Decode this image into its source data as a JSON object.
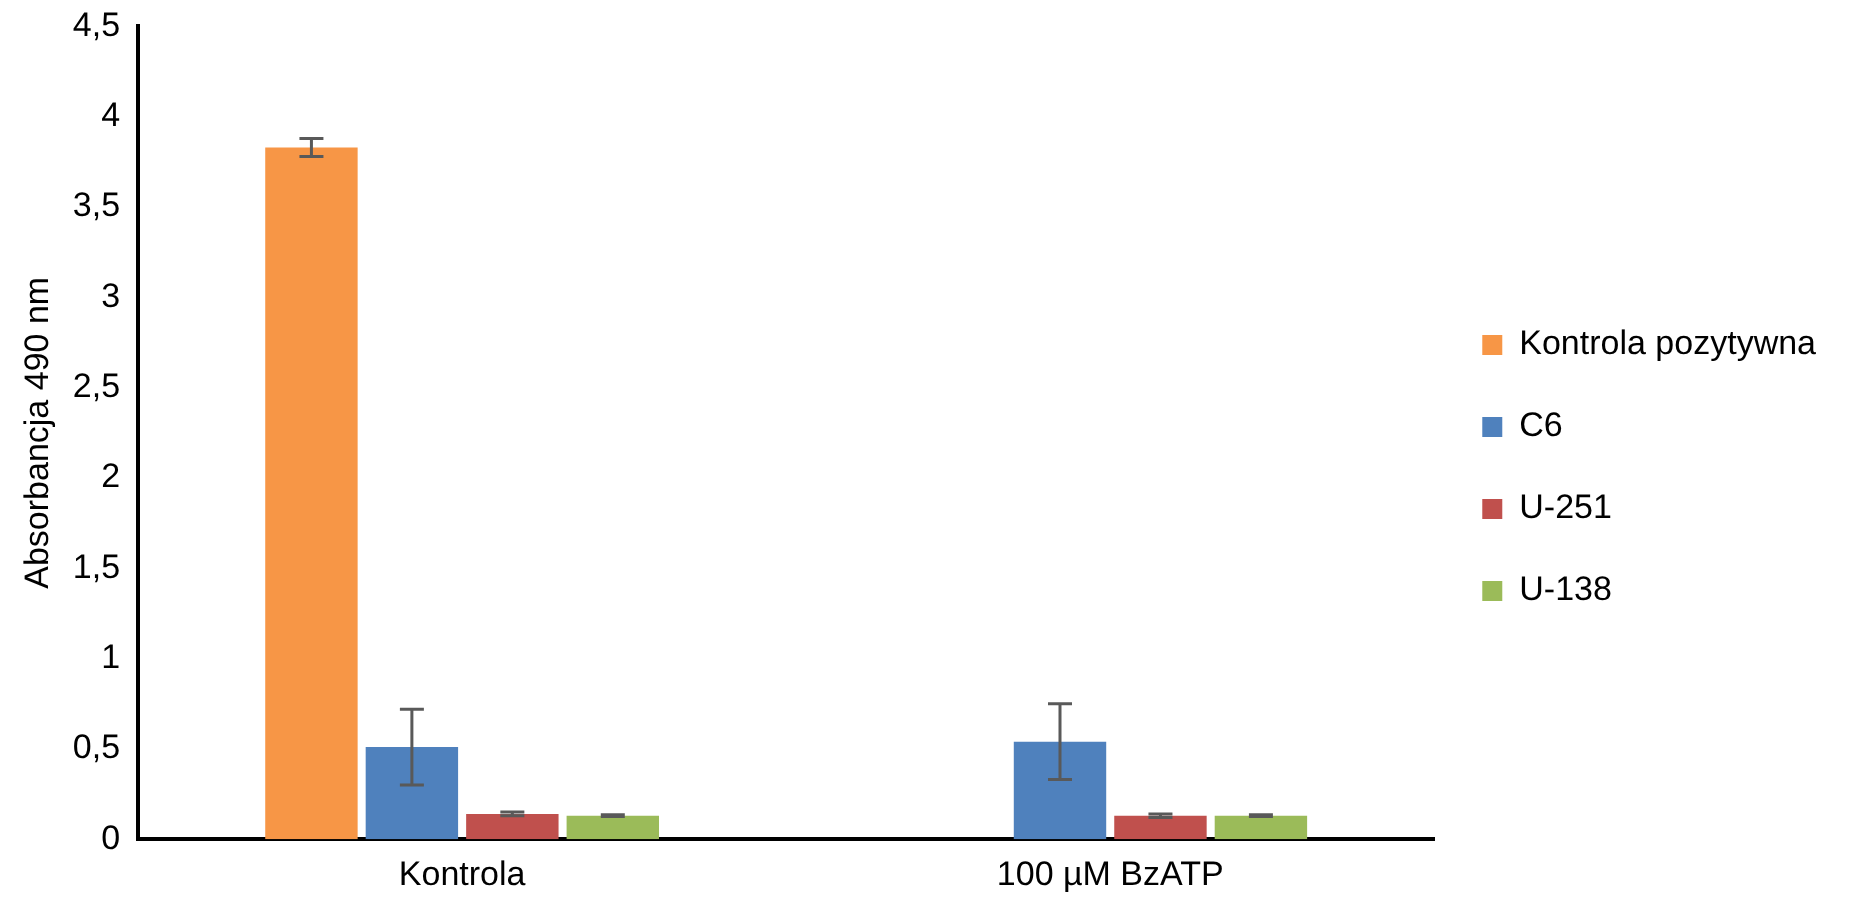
{
  "chart_data": {
    "type": "bar",
    "ylabel": "Absorbancja 490 nm",
    "categories": [
      "Kontrola",
      "100 µM BzATP"
    ],
    "series": [
      {
        "name": "Kontrola pozytywna",
        "color": "#f79646",
        "values": [
          3.83,
          null
        ],
        "errors": [
          0.05,
          null
        ]
      },
      {
        "name": "C6",
        "color": "#4f81bd",
        "values": [
          0.51,
          0.54
        ],
        "errors": [
          0.21,
          0.21
        ]
      },
      {
        "name": "U-251",
        "color": "#c0504d",
        "values": [
          0.14,
          0.13
        ],
        "errors": [
          0.01,
          0.01
        ]
      },
      {
        "name": "U-138",
        "color": "#9bbb59",
        "values": [
          0.13,
          0.13
        ],
        "errors": [
          0.005,
          0.005
        ]
      }
    ],
    "ylim": [
      0,
      4.5
    ],
    "yticks": [
      {
        "value": 0,
        "label": "0"
      },
      {
        "value": 0.5,
        "label": "0,5"
      },
      {
        "value": 1,
        "label": "1"
      },
      {
        "value": 1.5,
        "label": "1,5"
      },
      {
        "value": 2,
        "label": "2"
      },
      {
        "value": 2.5,
        "label": "2,5"
      },
      {
        "value": 3,
        "label": "3"
      },
      {
        "value": 3.5,
        "label": "3,5"
      },
      {
        "value": 4,
        "label": "4"
      },
      {
        "value": 4.5,
        "label": "4,5"
      }
    ],
    "grid": false,
    "legend": "right"
  }
}
